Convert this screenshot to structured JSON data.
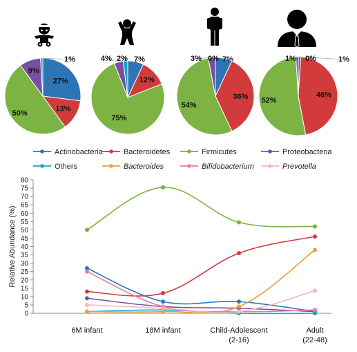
{
  "chart_data": [
    {
      "type": "pie",
      "group": "6M infant",
      "icon": "baby-icon",
      "slices": [
        {
          "name": "Actinobacteria",
          "value": 27,
          "label": "27%"
        },
        {
          "name": "Bacteroidetes",
          "value": 13,
          "label": "13%"
        },
        {
          "name": "Firmicutes",
          "value": 50,
          "label": "50%"
        },
        {
          "name": "Proteobacteria",
          "value": 9,
          "label": "9%"
        },
        {
          "name": "Others",
          "value": 1,
          "label": "1%"
        }
      ]
    },
    {
      "type": "pie",
      "group": "18M infant",
      "icon": "toddler-icon",
      "slices": [
        {
          "name": "Actinobacteria",
          "value": 7,
          "label": "7%"
        },
        {
          "name": "Bacteroidetes",
          "value": 12,
          "label": "12%"
        },
        {
          "name": "Firmicutes",
          "value": 75,
          "label": "75%"
        },
        {
          "name": "Proteobacteria",
          "value": 4,
          "label": "4%"
        },
        {
          "name": "Others",
          "value": 2,
          "label": "2%"
        }
      ]
    },
    {
      "type": "pie",
      "group": "Child-Adolescent",
      "icon": "child-icon",
      "slices": [
        {
          "name": "Actinobacteria",
          "value": 7,
          "label": "7%"
        },
        {
          "name": "Bacteroidetes",
          "value": 36,
          "label": "36%"
        },
        {
          "name": "Firmicutes",
          "value": 54,
          "label": "54%"
        },
        {
          "name": "Proteobacteria",
          "value": 3,
          "label": "3%"
        },
        {
          "name": "Others",
          "value": 0,
          "label": "0%"
        }
      ]
    },
    {
      "type": "pie",
      "group": "Adult",
      "icon": "adult-icon",
      "slices": [
        {
          "name": "Actinobacteria",
          "value": 1,
          "label": "1%"
        },
        {
          "name": "Bacteroidetes",
          "value": 46,
          "label": "46%"
        },
        {
          "name": "Firmicutes",
          "value": 52,
          "label": "52%"
        },
        {
          "name": "Proteobacteria",
          "value": 1,
          "label": "1%"
        },
        {
          "name": "Others",
          "value": 0,
          "label": "0%"
        }
      ]
    },
    {
      "type": "line",
      "categories": [
        "6M infant",
        "18M infant",
        "Child-Adolescent\n(2-16)",
        "Adult\n(22-48)"
      ],
      "ylabel": "Relative Abundance (%)",
      "ylim": [
        0,
        80
      ],
      "yticks": [
        0,
        5,
        10,
        15,
        20,
        25,
        30,
        35,
        40,
        45,
        50,
        55,
        60,
        65,
        70,
        75,
        80
      ],
      "grid": false,
      "legend": "top",
      "series": [
        {
          "name": "Actinobacteria",
          "italic": false,
          "color": "#2e75b6",
          "values": [
            27,
            7,
            7,
            1
          ]
        },
        {
          "name": "Bacteroidetes",
          "italic": false,
          "color": "#d13b3b",
          "values": [
            13,
            12,
            36,
            46
          ]
        },
        {
          "name": "Firmicutes",
          "italic": false,
          "color": "#7cb342",
          "values": [
            50,
            75.5,
            54.5,
            52
          ]
        },
        {
          "name": "Proteobacteria",
          "italic": false,
          "color": "#7b4ea3",
          "values": [
            9,
            4,
            3,
            1
          ]
        },
        {
          "name": "Others",
          "italic": false,
          "color": "#17a2c4",
          "values": [
            1,
            2,
            0,
            0
          ]
        },
        {
          "name": "Bacteroides",
          "italic": true,
          "color": "#f39c34",
          "values": [
            1,
            1,
            4,
            38
          ]
        },
        {
          "name": "Bifidobacterium",
          "italic": true,
          "color": "#ee7aa0",
          "values": [
            25,
            4,
            1,
            2
          ]
        },
        {
          "name": "Prevotella",
          "italic": true,
          "color": "#f4b8b8",
          "values": [
            5,
            3,
            1,
            13.5
          ]
        }
      ]
    }
  ]
}
